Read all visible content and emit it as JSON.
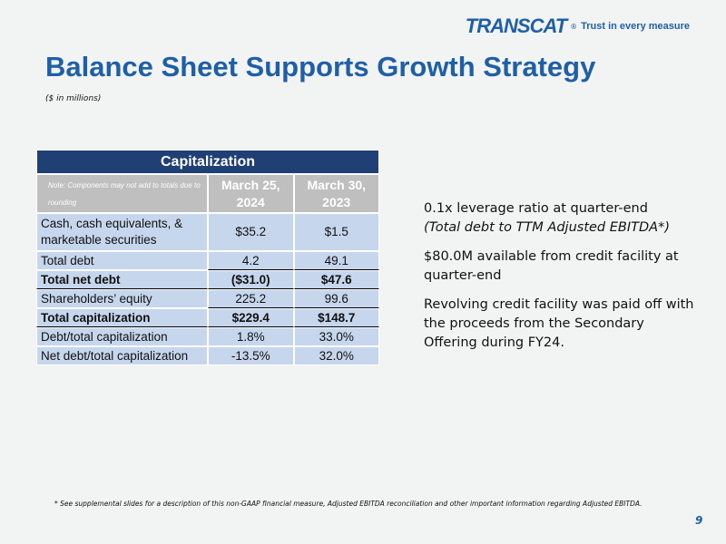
{
  "logo": {
    "name": "TRANSCAT",
    "mark": "®",
    "tagline": "Trust in every measure"
  },
  "title": "Balance Sheet Supports Growth Strategy",
  "subtitle": "($ in millions)",
  "table": {
    "title": "Capitalization",
    "note": "Note: Components may not add to totals due to rounding",
    "columns": [
      "March 25, 2024",
      "March 30, 2023"
    ],
    "rows": [
      [
        "Cash, cash equivalents, & marketable securities",
        "$35.2",
        "$1.5"
      ],
      [
        "Total debt",
        "4.2",
        "49.1"
      ],
      [
        "Total net debt",
        "($31.0)",
        "$47.6"
      ],
      [
        "Shareholders’ equity",
        "225.2",
        "99.6"
      ],
      [
        "Total capitalization",
        "$229.4",
        "$148.7"
      ],
      [
        "Debt/total capitalization",
        "1.8%",
        "33.0%"
      ],
      [
        "Net debt/total capitalization",
        "-13.5%",
        "32.0%"
      ]
    ]
  },
  "bullets": [
    {
      "text": "0.1x leverage ratio at quarter-end",
      "note": "(Total debt to TTM Adjusted EBITDA*)"
    },
    {
      "text": "$80.0M available from credit facility at quarter-end"
    },
    {
      "text": "Revolving credit facility was paid off with the proceeds from the Secondary Offering during FY24."
    }
  ],
  "footnote": "* See supplemental slides for a description of this non-GAAP financial measure, Adjusted EBITDA reconciliation and other important information regarding Adjusted EBITDA.",
  "page_number": "9"
}
